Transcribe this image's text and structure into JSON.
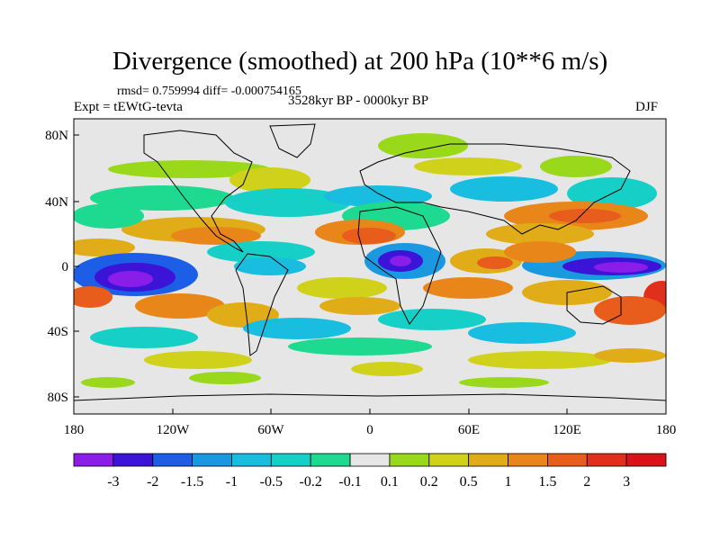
{
  "title": "Divergence (smoothed) at 200 hPa (10**6 m/s)",
  "stats": "rmsd= 0.759994 diff= -0.000754165",
  "experiment": "Expt = tEWtG-tevta",
  "period": "3528kyr BP - 0000kyr BP",
  "season": "DJF",
  "axes": {
    "y_ticks": [
      "80N",
      "40N",
      "0",
      "40S",
      "80S"
    ],
    "x_ticks": [
      "180",
      "120W",
      "60W",
      "0",
      "60E",
      "120E",
      "180"
    ]
  },
  "colorbar": {
    "labels": [
      "-3",
      "-2",
      "-1.5",
      "-1",
      "-0.5",
      "-0.2",
      "-0.1",
      "0.1",
      "0.2",
      "0.5",
      "1",
      "1.5",
      "2",
      "3"
    ],
    "colors": [
      "#8a1ee8",
      "#3c14d8",
      "#1d5ee6",
      "#1a98e0",
      "#19bde0",
      "#16cfc6",
      "#1ed990",
      "#e6e6e6",
      "#9ad81c",
      "#cfd11a",
      "#e0ad18",
      "#e8861a",
      "#e85c1c",
      "#e0301c",
      "#d6141a"
    ]
  },
  "map": {
    "background_color": "#e6e6e6",
    "coastline_color": "#000000"
  }
}
